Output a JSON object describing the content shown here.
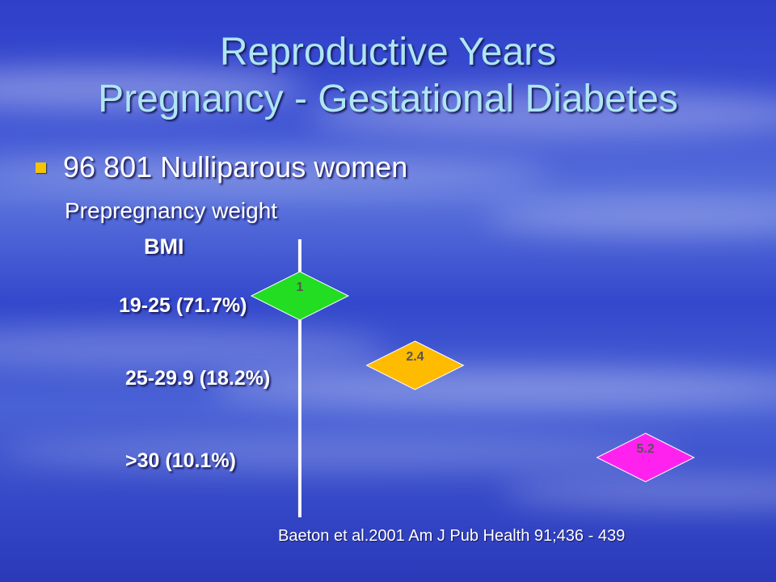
{
  "slide": {
    "title_line1": "Reproductive Years",
    "title_line2": "Pregnancy - Gestational Diabetes",
    "bullet": "96 801 Nulliparous women",
    "subtext": "Prepregnancy weight",
    "citation": "Baeton et al.2001 Am J Pub Health 91;436 - 439"
  },
  "colors": {
    "title": "#aee6f2",
    "bullet": "#f5c400",
    "text": "#ffffff"
  },
  "chart_data": {
    "type": "scatter",
    "title": "",
    "xlabel": "",
    "ylabel": "BMI",
    "reference_value": 1,
    "xlim": [
      0.5,
      6.0
    ],
    "categories": [
      "19-25 (71.7%)",
      "25-29.9 (18.2%)",
      ">30 (10.1%)"
    ],
    "values": [
      1,
      2.4,
      5.2
    ],
    "value_labels": [
      "1",
      "2.4",
      "5.2"
    ],
    "marker": "diamond",
    "marker_colors": [
      "#22dd22",
      "#ffbb00",
      "#ff22ee"
    ]
  }
}
